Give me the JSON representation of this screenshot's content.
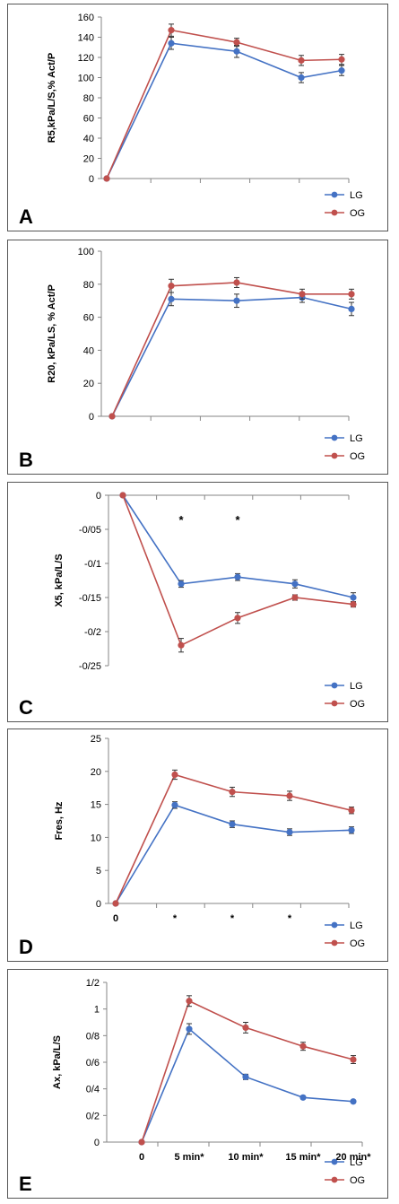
{
  "colors": {
    "LG": "#4472c4",
    "OG": "#c0504d",
    "axis": "#868686",
    "text": "#000000"
  },
  "chart_data": [
    {
      "type": "line",
      "panel_label": "A",
      "ylabel": "R5,kPa/L/S,% Act/P",
      "ylim": [
        0,
        160
      ],
      "yticks": [
        "0",
        "20",
        "40",
        "60",
        "80",
        "100",
        "120",
        "140",
        "160"
      ],
      "ytick_values": [
        0,
        20,
        40,
        60,
        80,
        100,
        120,
        140,
        160
      ],
      "categories": [
        "",
        "",
        "",
        "",
        ""
      ],
      "series": [
        {
          "name": "LG",
          "values": [
            0,
            134,
            126,
            100,
            107
          ],
          "errors": [
            0,
            6,
            6,
            5,
            5
          ]
        },
        {
          "name": "OG",
          "values": [
            0,
            147,
            135,
            117,
            118
          ],
          "errors": [
            0,
            6,
            4,
            5,
            5
          ]
        }
      ],
      "stars": [
        "",
        "",
        "",
        "",
        ""
      ],
      "legend_position": "bottom-right",
      "grid": false
    },
    {
      "type": "line",
      "panel_label": "B",
      "ylabel": "R20, kPa/LS, % Act/P",
      "ylim": [
        0,
        100
      ],
      "yticks": [
        "0",
        "20",
        "40",
        "60",
        "80",
        "100"
      ],
      "ytick_values": [
        0,
        20,
        40,
        60,
        80,
        100
      ],
      "categories": [
        "",
        "",
        "",
        "",
        ""
      ],
      "series": [
        {
          "name": "LG",
          "values": [
            0,
            71,
            70,
            72,
            65
          ],
          "errors": [
            0,
            4,
            4,
            3,
            4
          ]
        },
        {
          "name": "OG",
          "values": [
            0,
            79,
            81,
            74,
            74
          ],
          "errors": [
            0,
            4,
            3,
            3,
            3
          ]
        }
      ],
      "stars": [
        "",
        "",
        "",
        "",
        ""
      ],
      "legend_position": "bottom-right",
      "grid": false
    },
    {
      "type": "line",
      "panel_label": "C",
      "ylabel": "X5, kPa/L/S",
      "ylim": [
        -0.25,
        0
      ],
      "yticks": [
        "0",
        "-0/05",
        "-0/1",
        "-0/15",
        "-0/2",
        "-0/25"
      ],
      "ytick_values": [
        0,
        -0.05,
        -0.1,
        -0.15,
        -0.2,
        -0.25
      ],
      "categories": [
        "",
        "",
        "",
        "",
        ""
      ],
      "series": [
        {
          "name": "LG",
          "values": [
            0,
            -0.13,
            -0.12,
            -0.13,
            -0.15
          ],
          "errors": [
            0,
            0.005,
            0.005,
            0.006,
            0.007
          ]
        },
        {
          "name": "OG",
          "values": [
            0,
            -0.22,
            -0.18,
            -0.15,
            -0.16
          ],
          "errors": [
            0,
            0.01,
            0.008,
            0.004,
            0.004
          ]
        }
      ],
      "stars": [
        "",
        "*",
        "*",
        "",
        ""
      ],
      "star_row": "top",
      "legend_position": "bottom-right",
      "grid": false
    },
    {
      "type": "line",
      "panel_label": "D",
      "ylabel": "Fres, Hz",
      "ylim": [
        0,
        25
      ],
      "yticks": [
        "0",
        "5",
        "10",
        "15",
        "20",
        "25"
      ],
      "ytick_values": [
        0,
        5,
        10,
        15,
        20,
        25
      ],
      "categories": [
        "0",
        "*",
        "*",
        "*",
        ""
      ],
      "series": [
        {
          "name": "LG",
          "values": [
            0,
            14.9,
            12,
            10.8,
            11.1
          ],
          "errors": [
            0,
            0.5,
            0.5,
            0.5,
            0.5
          ]
        },
        {
          "name": "OG",
          "values": [
            0,
            19.5,
            16.9,
            16.3,
            14.1
          ],
          "errors": [
            0,
            0.7,
            0.7,
            0.7,
            0.5
          ]
        }
      ],
      "stars": [
        "",
        "",
        "",
        "",
        ""
      ],
      "legend_position": "bottom-right",
      "grid": false
    },
    {
      "type": "line",
      "panel_label": "E",
      "ylabel": "Ax, kPa/L/S",
      "ylim": [
        0,
        1.2
      ],
      "yticks": [
        "0",
        "0/2",
        "0/4",
        "0/6",
        "0/8",
        "1",
        "1/2"
      ],
      "ytick_values": [
        0,
        0.2,
        0.4,
        0.6,
        0.8,
        1.0,
        1.2
      ],
      "categories": [
        "0",
        "5 min*",
        "10 min*",
        "15 min*",
        "20 min*"
      ],
      "series": [
        {
          "name": "LG",
          "values": [
            0,
            0.85,
            0.49,
            0.335,
            0.305
          ],
          "errors": [
            0,
            0.04,
            0.02,
            0.01,
            0.01
          ]
        },
        {
          "name": "OG",
          "values": [
            0,
            1.06,
            0.86,
            0.72,
            0.62
          ],
          "errors": [
            0,
            0.04,
            0.04,
            0.03,
            0.03
          ]
        }
      ],
      "stars": [
        "",
        "",
        "",
        "",
        ""
      ],
      "legend_position": "bottom-right",
      "grid": false
    }
  ]
}
